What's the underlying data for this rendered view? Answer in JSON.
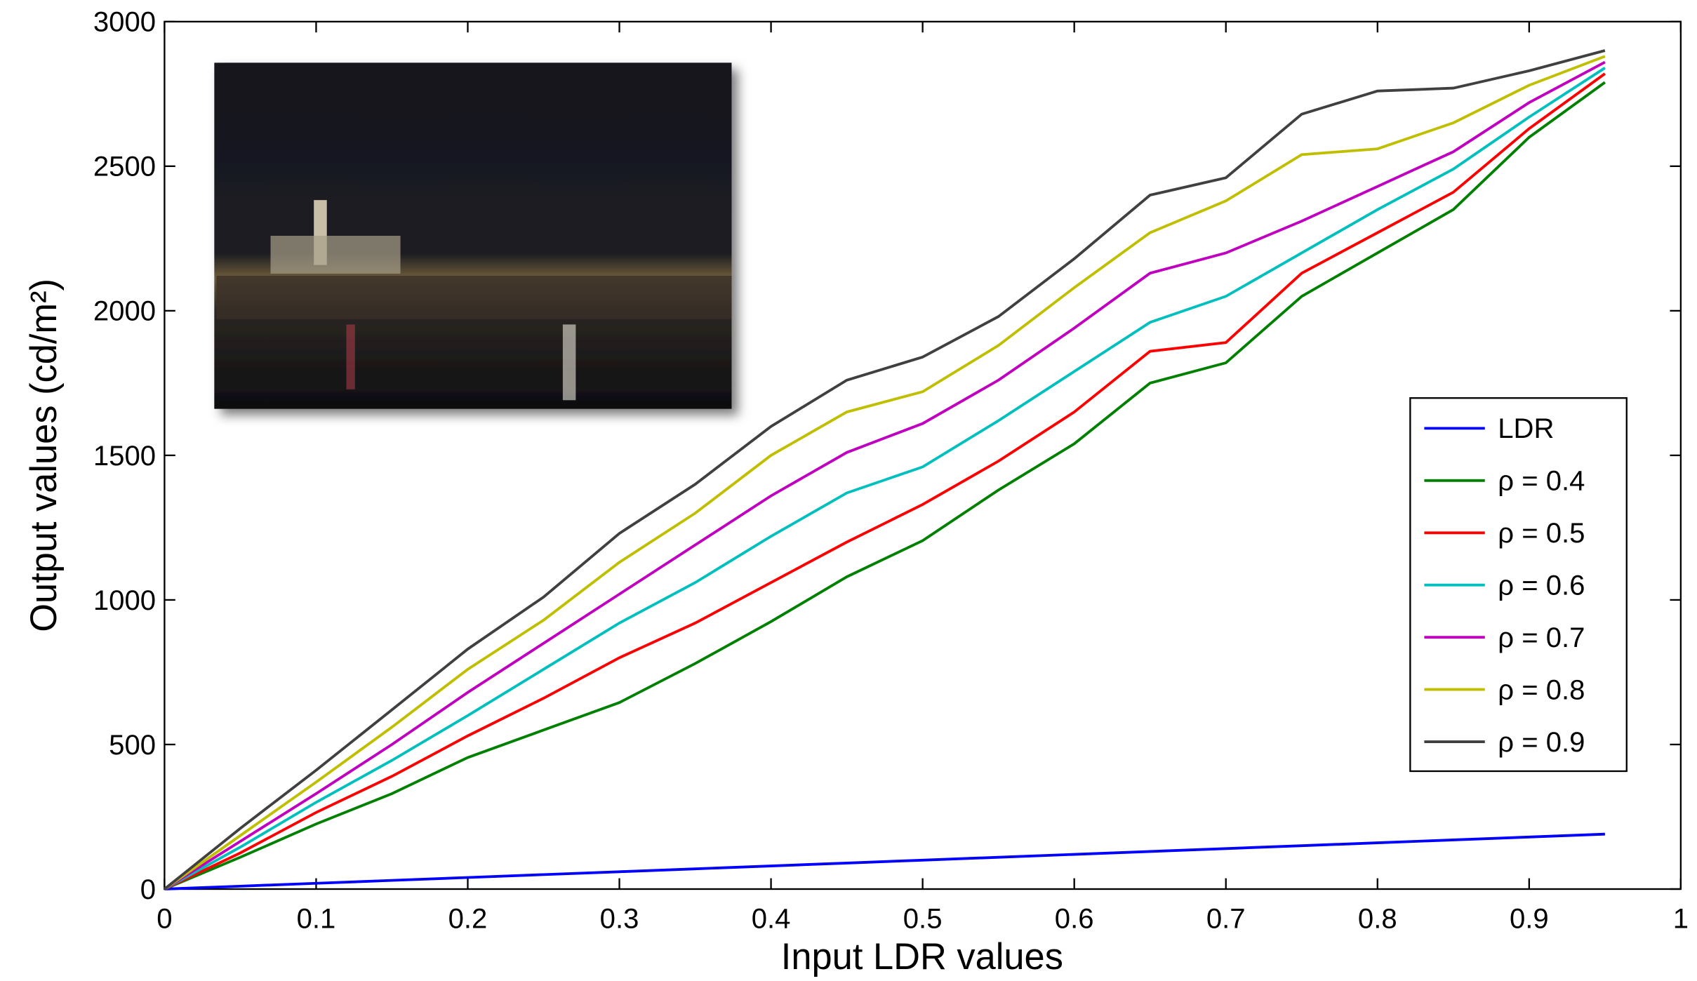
{
  "chart_data": {
    "type": "line",
    "xlabel": "Input LDR values",
    "ylabel": "Output values (cd/m²)",
    "x": [
      0,
      0.05,
      0.1,
      0.15,
      0.2,
      0.25,
      0.3,
      0.35,
      0.4,
      0.45,
      0.5,
      0.55,
      0.6,
      0.65,
      0.7,
      0.75,
      0.8,
      0.85,
      0.9,
      0.95
    ],
    "series": [
      {
        "name": "LDR",
        "color": "#0000ff",
        "values": [
          0,
          10,
          20,
          30,
          40,
          50,
          60,
          70,
          80,
          90,
          100,
          110,
          120,
          130,
          140,
          150,
          160,
          170,
          180,
          190
        ]
      },
      {
        "name": "ρ = 0.4",
        "color": "#008000",
        "values": [
          0,
          110,
          225,
          330,
          455,
          550,
          645,
          780,
          925,
          1080,
          1205,
          1380,
          1540,
          1750,
          1820,
          2050,
          2200,
          2350,
          2600,
          2790
        ]
      },
      {
        "name": "ρ = 0.5",
        "color": "#ff0000",
        "values": [
          0,
          125,
          265,
          390,
          530,
          660,
          800,
          920,
          1060,
          1200,
          1330,
          1480,
          1650,
          1860,
          1890,
          2130,
          2270,
          2410,
          2630,
          2820
        ]
      },
      {
        "name": "ρ = 0.6",
        "color": "#00bfbf",
        "values": [
          0,
          145,
          300,
          445,
          600,
          760,
          920,
          1060,
          1220,
          1370,
          1460,
          1620,
          1790,
          1960,
          2050,
          2200,
          2350,
          2490,
          2670,
          2840
        ]
      },
      {
        "name": "ρ = 0.7",
        "color": "#bf00bf",
        "values": [
          0,
          165,
          330,
          500,
          680,
          850,
          1020,
          1190,
          1360,
          1510,
          1610,
          1760,
          1940,
          2130,
          2200,
          2310,
          2430,
          2550,
          2720,
          2860
        ]
      },
      {
        "name": "ρ = 0.8",
        "color": "#bfbf00",
        "values": [
          0,
          185,
          370,
          560,
          760,
          930,
          1130,
          1300,
          1500,
          1650,
          1720,
          1880,
          2080,
          2270,
          2380,
          2540,
          2560,
          2650,
          2780,
          2880
        ]
      },
      {
        "name": "ρ = 0.9",
        "color": "#404040",
        "values": [
          0,
          210,
          411,
          620,
          830,
          1010,
          1230,
          1400,
          1600,
          1760,
          1840,
          1980,
          2180,
          2400,
          2460,
          2680,
          2760,
          2770,
          2830,
          2900
        ]
      }
    ],
    "xlim": [
      0,
      1
    ],
    "xticks": [
      0,
      0.1,
      0.2,
      0.3,
      0.4,
      0.5,
      0.6,
      0.7,
      0.8,
      0.9,
      1
    ],
    "ylim": [
      0,
      3000
    ],
    "yticks": [
      0,
      500,
      1000,
      1500,
      2000,
      2500,
      3000
    ],
    "legend": "right"
  }
}
